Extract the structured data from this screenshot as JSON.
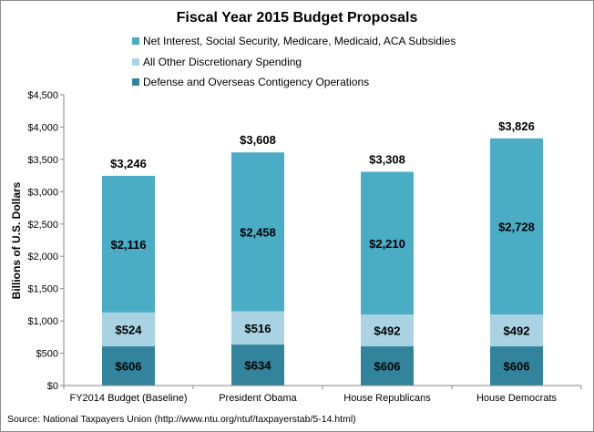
{
  "chart_data": {
    "type": "bar",
    "stacked": true,
    "title": "Fiscal Year 2015 Budget Proposals",
    "ylabel": "Billions of U.S. Dollars",
    "xlabel": "",
    "ylim": [
      0,
      4500
    ],
    "yticks": [
      0,
      500,
      1000,
      1500,
      2000,
      2500,
      3000,
      3500,
      4000,
      4500
    ],
    "ytick_labels": [
      "$0",
      "$500",
      "$1,000",
      "$1,500",
      "$2,000",
      "$2,500",
      "$3,000",
      "$3,500",
      "$4,000",
      "$4,500"
    ],
    "grid": false,
    "legend_position": "top",
    "categories": [
      "FY2014 Budget (Baseline)",
      "President Obama",
      "House Republicans",
      "House Democrats"
    ],
    "series": [
      {
        "name": "Defense and Overseas Contigency Operations",
        "color": "#31849b",
        "values": [
          606,
          634,
          606,
          606
        ],
        "labels": [
          "$606",
          "$634",
          "$606",
          "$606"
        ]
      },
      {
        "name": "All Other Discretionary Spending",
        "color": "#a9d3e2",
        "values": [
          524,
          516,
          492,
          492
        ],
        "labels": [
          "$524",
          "$516",
          "$492",
          "$492"
        ]
      },
      {
        "name": "Net Interest, Social Security, Medicare, Medicaid, ACA Subsidies",
        "color": "#4bacc6",
        "values": [
          2116,
          2458,
          2210,
          2728
        ],
        "labels": [
          "$2,116",
          "$2,458",
          "$2,210",
          "$2,728"
        ]
      }
    ],
    "totals": [
      3246,
      3608,
      3308,
      3826
    ],
    "total_labels": [
      "$3,246",
      "$3,608",
      "$3,308",
      "$3,826"
    ],
    "source": "Source: National Taxpayers Union (http://www.ntu.org/ntuf/taxpayerstab/5-14.html)"
  }
}
